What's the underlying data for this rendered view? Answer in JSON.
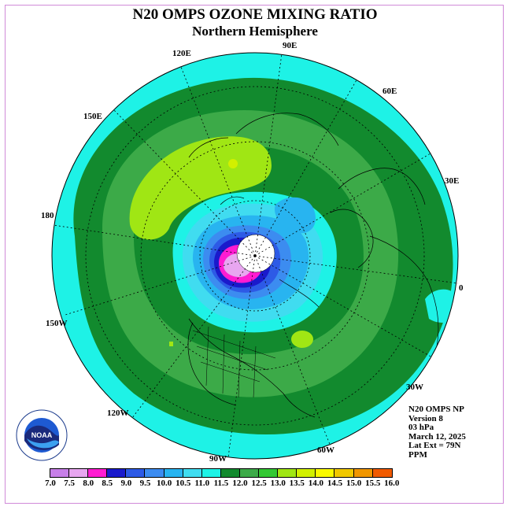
{
  "header": {
    "title": "N20 OMPS OZONE MIXING RATIO",
    "subtitle": "Northern Hemisphere"
  },
  "longitude_labels": [
    "90E",
    "60E",
    "30E",
    "0",
    "30W",
    "60W",
    "90W",
    "120W",
    "150W",
    "180",
    "150E",
    "120E"
  ],
  "info": {
    "product": "N20 OMPS NP",
    "version": "Version 8",
    "level": "03 hPa",
    "date": "March 12, 2025",
    "lat_ext": "Lat Ext = 79N",
    "units": "PPM"
  },
  "colorbar": {
    "ticks": [
      "7.0",
      "7.5",
      "8.0",
      "8.5",
      "9.0",
      "9.5",
      "10.0",
      "10.5",
      "11.0",
      "11.5",
      "12.0",
      "12.5",
      "13.0",
      "13.5",
      "14.0",
      "14.5",
      "15.0",
      "15.5",
      "16.0"
    ],
    "colors": [
      "#c77fe8",
      "#e8a6f0",
      "#ff1cd2",
      "#1a1acc",
      "#2d5ae6",
      "#3c8cf0",
      "#28b4f0",
      "#40dcf0",
      "#1ef2e6",
      "#128a2e",
      "#3caa48",
      "#32c832",
      "#a0e614",
      "#d2f000",
      "#fafa00",
      "#f0c800",
      "#f09600",
      "#f05a00",
      "#e61414",
      "#8c5a32"
    ]
  },
  "logo": {
    "text": "NOAA"
  },
  "colors": {
    "frame": "#d08ad8",
    "polar_night": "#ffffff"
  }
}
